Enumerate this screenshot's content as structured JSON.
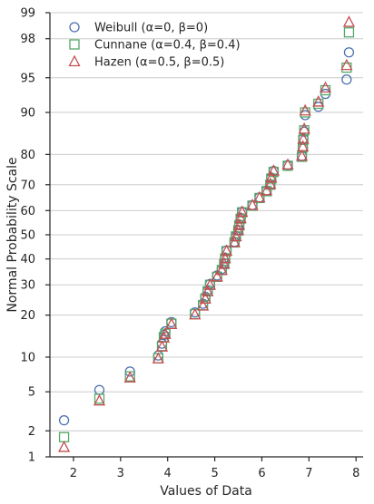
{
  "chart_data": {
    "type": "scatter",
    "title": "",
    "xlabel": "Values of Data",
    "ylabel": "Normal Probability Scale",
    "xlim": [
      1.5,
      8.15
    ],
    "ylim": [
      1,
      99
    ],
    "yscale": "normal-probability",
    "grid": "horizontal",
    "legend_position": "top-left",
    "x_ticks": [
      2,
      3,
      4,
      5,
      6,
      7,
      8
    ],
    "y_ticks": [
      1,
      2,
      5,
      10,
      20,
      30,
      40,
      50,
      60,
      70,
      80,
      90,
      95,
      98,
      99
    ],
    "x": [
      1.8,
      2.55,
      3.2,
      3.8,
      3.88,
      3.92,
      3.95,
      4.08,
      4.58,
      4.75,
      4.8,
      4.85,
      4.9,
      5.05,
      5.15,
      5.2,
      5.22,
      5.25,
      5.42,
      5.45,
      5.5,
      5.52,
      5.55,
      5.58,
      5.8,
      5.95,
      6.1,
      6.18,
      6.2,
      6.25,
      6.55,
      6.85,
      6.87,
      6.88,
      6.9,
      6.92,
      7.2,
      7.35,
      7.8,
      7.85
    ],
    "series": [
      {
        "name": "Weibull (α=0, β=0)",
        "marker": "circle",
        "color": "#4c72b0",
        "values": [
          2.6,
          5.2,
          7.6,
          10.3,
          12.7,
          14.7,
          15.6,
          18.0,
          20.8,
          23.5,
          25.8,
          28.0,
          30.3,
          33.5,
          36.0,
          38.3,
          40.5,
          43.5,
          47.0,
          49.5,
          52.0,
          54.3,
          57.0,
          59.5,
          62.2,
          65.2,
          67.8,
          70.0,
          72.5,
          74.8,
          76.7,
          79.5,
          82.0,
          84.3,
          86.0,
          89.5,
          91.0,
          93.0,
          94.8,
          97.2
        ]
      },
      {
        "name": "Cunnane (α=0.4, β=0.4)",
        "marker": "square",
        "color": "#55a868",
        "values": [
          1.7,
          4.3,
          6.9,
          9.8,
          12.2,
          14.2,
          15.0,
          17.6,
          20.3,
          23.0,
          25.2,
          27.7,
          30.0,
          33.0,
          35.6,
          38.0,
          40.2,
          43.2,
          46.8,
          49.3,
          51.8,
          54.0,
          56.7,
          59.3,
          62.0,
          65.0,
          67.6,
          70.0,
          72.2,
          74.5,
          76.5,
          79.3,
          82.0,
          84.0,
          86.3,
          90.0,
          91.5,
          93.5,
          96.0,
          98.3
        ]
      },
      {
        "name": "Hazen (α=0.5, β=0.5)",
        "marker": "triangle",
        "color": "#c44e52",
        "values": [
          1.3,
          4.1,
          6.7,
          9.7,
          12.0,
          14.0,
          14.9,
          17.4,
          20.1,
          22.8,
          25.1,
          27.6,
          29.9,
          33.0,
          35.5,
          38.0,
          40.2,
          43.2,
          46.8,
          49.3,
          51.8,
          54.0,
          56.8,
          59.4,
          62.1,
          65.1,
          67.8,
          70.2,
          72.5,
          74.8,
          76.8,
          79.5,
          82.2,
          84.2,
          86.6,
          90.3,
          91.8,
          93.8,
          96.2,
          98.7
        ]
      }
    ]
  }
}
